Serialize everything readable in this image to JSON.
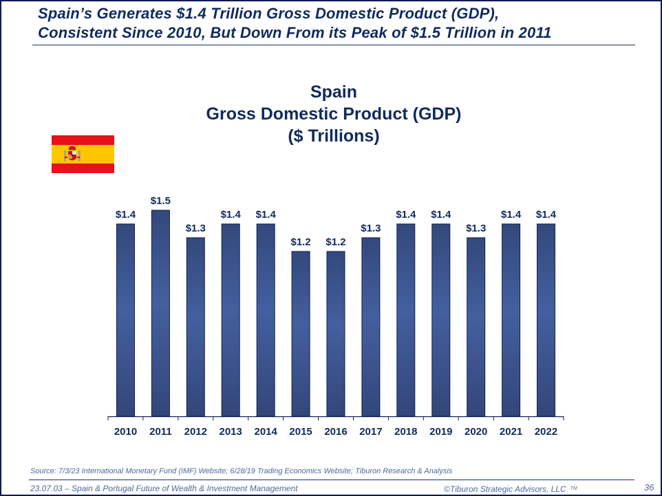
{
  "headline": {
    "line1": "Spain’s Generates $1.4 Trillion Gross Domestic Product (GDP),",
    "line2": "Consistent Since 2010, But Down From its Peak of $1.5 Trillion in 2011"
  },
  "flag": {
    "icon": "spain-flag-icon",
    "colors": {
      "red": "#e8101a",
      "yellow": "#ffc600"
    }
  },
  "chart_data": {
    "type": "bar",
    "title": [
      "Spain",
      "Gross Domestic Product (GDP)",
      "($ Trillions)"
    ],
    "xlabel": "",
    "ylabel": "",
    "categories": [
      "2010",
      "2011",
      "2012",
      "2013",
      "2014",
      "2015",
      "2016",
      "2017",
      "2018",
      "2019",
      "2020",
      "2021",
      "2022"
    ],
    "values": [
      1.4,
      1.5,
      1.3,
      1.4,
      1.4,
      1.2,
      1.2,
      1.3,
      1.4,
      1.4,
      1.3,
      1.4,
      1.4
    ],
    "data_labels": [
      "$1.4",
      "$1.5",
      "$1.3",
      "$1.4",
      "$1.4",
      "$1.2",
      "$1.2",
      "$1.3",
      "$1.4",
      "$1.4",
      "$1.3",
      "$1.4",
      "$1.4"
    ],
    "ylim": [
      0,
      1.5
    ],
    "grid": false,
    "legend": "none",
    "bar_color": "#3a5494"
  },
  "footer": {
    "source": "Source:  7/3/23 International Monetary Fund (IMF) Website; 6/28/19 Trading Economics Website; Tiburon Research & Analysis",
    "left": "23.07.03 – Spain & Portugal Future of Wealth & Investment Management",
    "right": "©Tiburon Strategic Advisors, LLC",
    "tm": "TM",
    "page": "36"
  }
}
